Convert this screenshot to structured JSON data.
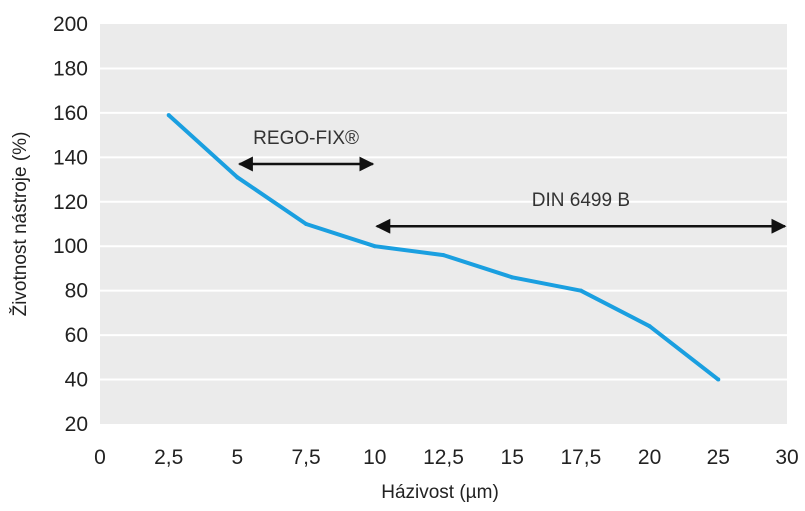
{
  "chart_data": {
    "type": "line",
    "xlabel": "Házivost (µm)",
    "ylabel": "Životnost nástroje (%)",
    "x_tick_labels": [
      "0",
      "2,5",
      "5",
      "7,5",
      "10",
      "12,5",
      "15",
      "17,5",
      "20",
      "25",
      "30"
    ],
    "y_ticks": [
      20,
      40,
      60,
      80,
      100,
      120,
      140,
      160,
      180,
      200
    ],
    "ylim": [
      20,
      200
    ],
    "grid": "horizontal",
    "background": "#ebebeb",
    "series": [
      {
        "color": "#1a9fe0",
        "x": [
          "2,5",
          "5",
          "7,5",
          "10",
          "12,5",
          "15",
          "17,5",
          "20",
          "25"
        ],
        "values": [
          159,
          131,
          110,
          100,
          96,
          86,
          80,
          64,
          40
        ]
      }
    ],
    "annotations": [
      {
        "text": "REGO-FIX®",
        "from": "5",
        "to": "10",
        "y": 137
      },
      {
        "text": "DIN 6499 B",
        "from": "10",
        "to": "30",
        "y": 109
      }
    ]
  }
}
